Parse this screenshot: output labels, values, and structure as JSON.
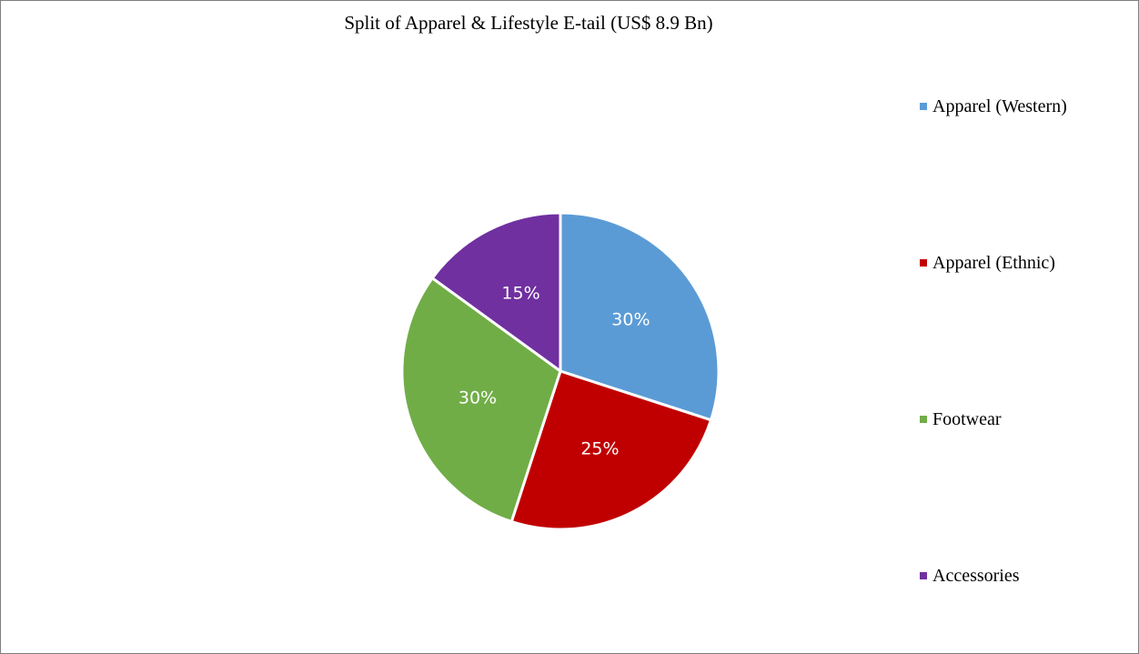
{
  "chart_data": {
    "type": "pie",
    "title": "Split of Apparel & Lifestyle E-tail (US$ 8.9 Bn)",
    "categories": [
      "Apparel (Western)",
      "Apparel (Ethnic)",
      "Footwear",
      "Accessories"
    ],
    "values": [
      30,
      25,
      30,
      15
    ],
    "labels": [
      "30%",
      "25%",
      "30%",
      "15%"
    ],
    "colors": [
      "#5b9bd5",
      "#c00000",
      "#70ad47",
      "#7030a0"
    ],
    "legend_position": "right"
  }
}
